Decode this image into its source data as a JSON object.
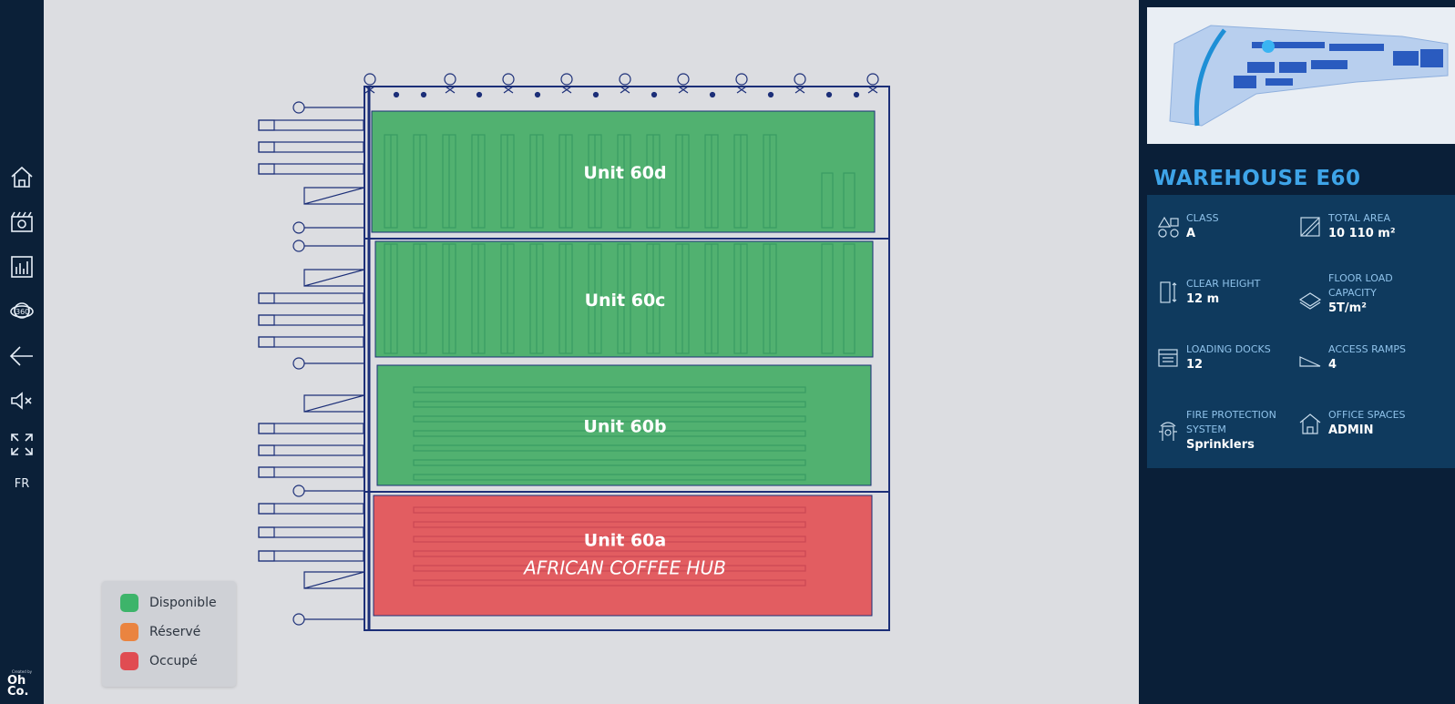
{
  "sidebar": {
    "language": "FR",
    "credit": "Created by",
    "logo": [
      "Oh",
      "Co."
    ]
  },
  "plan": {
    "units": [
      {
        "name": "Unit 60d",
        "color": "#3dab60"
      },
      {
        "name": "Unit 60c",
        "color": "#3dab60"
      },
      {
        "name": "Unit 60b",
        "color": "#3dab60"
      },
      {
        "name": "Unit 60a",
        "tenant": "AFRICAN COFFEE HUB",
        "color": "#e24b4e"
      }
    ]
  },
  "legend": {
    "items": [
      {
        "label": "Disponible",
        "color": "#3db46a"
      },
      {
        "label": "Réservé",
        "color": "#ea8440"
      },
      {
        "label": "Occupé",
        "color": "#e04c52"
      }
    ]
  },
  "panel": {
    "title": "WAREHOUSE E60",
    "specs": [
      {
        "label": "CLASS",
        "value": "A"
      },
      {
        "label": "TOTAL AREA",
        "value": "10 110 m²"
      },
      {
        "label": "CLEAR HEIGHT",
        "value": "12 m"
      },
      {
        "label": "FLOOR LOAD CAPACITY",
        "value": "5T/m²"
      },
      {
        "label": "LOADING DOCKS",
        "value": 12
      },
      {
        "label": "ACCESS RAMPS",
        "value": 4
      },
      {
        "label": "FIRE PROTECTION SYSTEM",
        "value": "Sprinklers"
      },
      {
        "label": "OFFICE SPACES",
        "value": "ADMIN"
      }
    ]
  }
}
